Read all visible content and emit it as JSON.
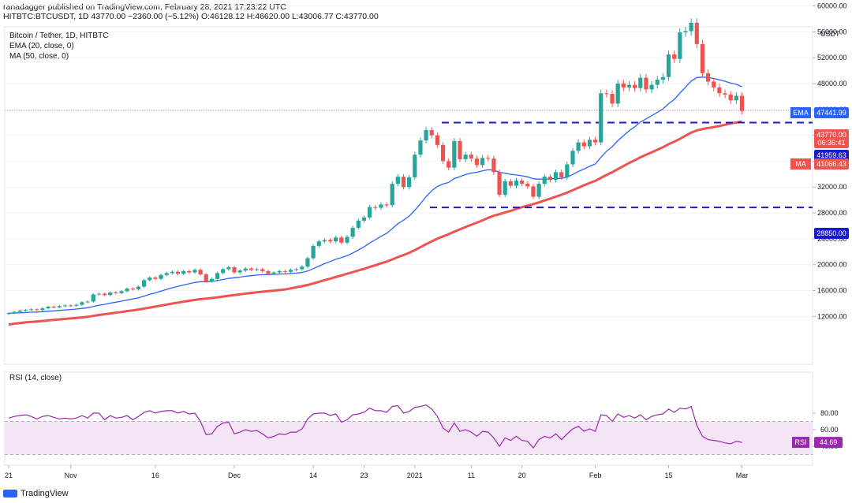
{
  "header": {
    "publish_line": "ranadagger published on TradingView.com, February 28, 2021 17:23:22 UTC",
    "ohlc_line": "HITBTC:BTCUSDT, 1D  43770.00  −2360.00 (−5.12%)  O:46128.12  H:46620.00  L:43006.77  C:43770.00"
  },
  "legend": {
    "symbol": "Bitcoin / Tether, 1D, HITBTC",
    "ema": "EMA (20, close, 0)",
    "ma": "MA (50, close, 0)",
    "rsi": "RSI (14, close)"
  },
  "footer": {
    "brand": "TradingView"
  },
  "colors": {
    "up": "#26a69a",
    "down": "#ef5350",
    "ema": "#2962ff",
    "ma": "#ef5350",
    "rsi_line": "#9c27b0",
    "rsi_band": "#f3e5f5",
    "hline": "#1a1acd"
  },
  "chart_data": {
    "type": "candlestick",
    "price_axis": {
      "ticks": [
        12000,
        16000,
        20000,
        24000,
        28000,
        32000,
        36000,
        40000,
        44000,
        48000,
        52000,
        56000,
        60000
      ],
      "tick_labels": [
        "12000.00",
        "16000.00",
        "20000.00",
        "24000.00",
        "28000.00",
        "32000.00",
        "36000.00",
        "40000.00",
        "44000.00",
        "48000.00",
        "52000.00",
        "56000.00",
        "60000.00"
      ],
      "currency": "USDT"
    },
    "x_axis": {
      "labels": [
        "21",
        "Nov",
        "16",
        "Dec",
        "14",
        "23",
        "2021",
        "11",
        "20",
        "Feb",
        "15",
        "Mar"
      ],
      "label_index": [
        0,
        11,
        26,
        40,
        54,
        63,
        72,
        82,
        91,
        104,
        117,
        130
      ]
    },
    "tags": [
      {
        "name": "EMA",
        "value": "47441.99",
        "color": "#2962ff"
      },
      {
        "name": "",
        "value": "43770.00",
        "sub": "06:36:41",
        "color": "#ef5350"
      },
      {
        "name": "",
        "value": "41959.63",
        "color": "#1a1acd"
      },
      {
        "name": "MA",
        "value": "41066.43",
        "color": "#ef5350"
      },
      {
        "name": "",
        "value": "28850.00",
        "color": "#1a1acd"
      }
    ],
    "horizontal_lines": [
      41959.63,
      28850.0
    ],
    "close": [
      12500,
      12700,
      12900,
      13000,
      13100,
      13000,
      13250,
      13500,
      13400,
      13600,
      13700,
      13650,
      13800,
      14200,
      14300,
      15400,
      15500,
      15300,
      15700,
      15600,
      15900,
      16300,
      16200,
      16600,
      17600,
      18000,
      17800,
      18400,
      18700,
      18900,
      18600,
      19000,
      18800,
      19200,
      18500,
      17400,
      17800,
      18700,
      19300,
      19600,
      18800,
      19100,
      19400,
      19200,
      19300,
      19000,
      18600,
      18800,
      19000,
      18900,
      19200,
      19300,
      19700,
      21000,
      22900,
      23600,
      23800,
      23600,
      24200,
      23400,
      24300,
      25700,
      26800,
      27300,
      28900,
      28800,
      29300,
      29200,
      32500,
      33600,
      32000,
      33500,
      37000,
      39200,
      40800,
      40000,
      38500,
      36000,
      35000,
      39100,
      36300,
      37000,
      36400,
      35400,
      36500,
      36400,
      34300,
      30800,
      32900,
      32200,
      33000,
      32500,
      32100,
      30500,
      32500,
      33600,
      33100,
      34300,
      33500,
      35500,
      37600,
      38900,
      38300,
      39300,
      38900,
      46500,
      46400,
      44900,
      48000,
      47400,
      47800,
      47300,
      48900,
      47100,
      47800,
      48600,
      49000,
      52500,
      51800,
      55900,
      56100,
      57400,
      54100,
      49600,
      48300,
      47400,
      46500,
      46300,
      45400,
      46100,
      43770
    ],
    "rsi_ticks": [
      40,
      60,
      80
    ],
    "rsi": [
      74,
      76,
      77,
      78,
      76,
      73,
      76,
      77,
      75,
      73,
      74,
      73,
      74,
      77,
      74,
      80,
      80,
      72,
      77,
      74,
      75,
      77,
      72,
      76,
      81,
      83,
      80,
      82,
      83,
      83,
      80,
      82,
      79,
      80,
      70,
      54,
      55,
      64,
      68,
      69,
      55,
      57,
      60,
      58,
      59,
      55,
      50,
      52,
      55,
      54,
      57,
      57,
      61,
      73,
      79,
      80,
      80,
      77,
      79,
      69,
      72,
      78,
      79,
      81,
      86,
      83,
      83,
      81,
      88,
      89,
      80,
      82,
      87,
      88,
      90,
      85,
      76,
      62,
      57,
      68,
      58,
      60,
      57,
      52,
      58,
      57,
      50,
      40,
      50,
      47,
      52,
      47,
      46,
      38,
      48,
      52,
      50,
      55,
      48,
      55,
      61,
      64,
      58,
      61,
      58,
      78,
      77,
      70,
      79,
      75,
      77,
      74,
      78,
      72,
      76,
      78,
      79,
      85,
      81,
      86,
      85,
      88,
      65,
      52,
      48,
      47,
      46,
      44,
      43,
      46,
      44.69
    ],
    "rsi_value_label": "44.69",
    "ema20_end": 47441.99,
    "ma50_end": 41066.43
  }
}
